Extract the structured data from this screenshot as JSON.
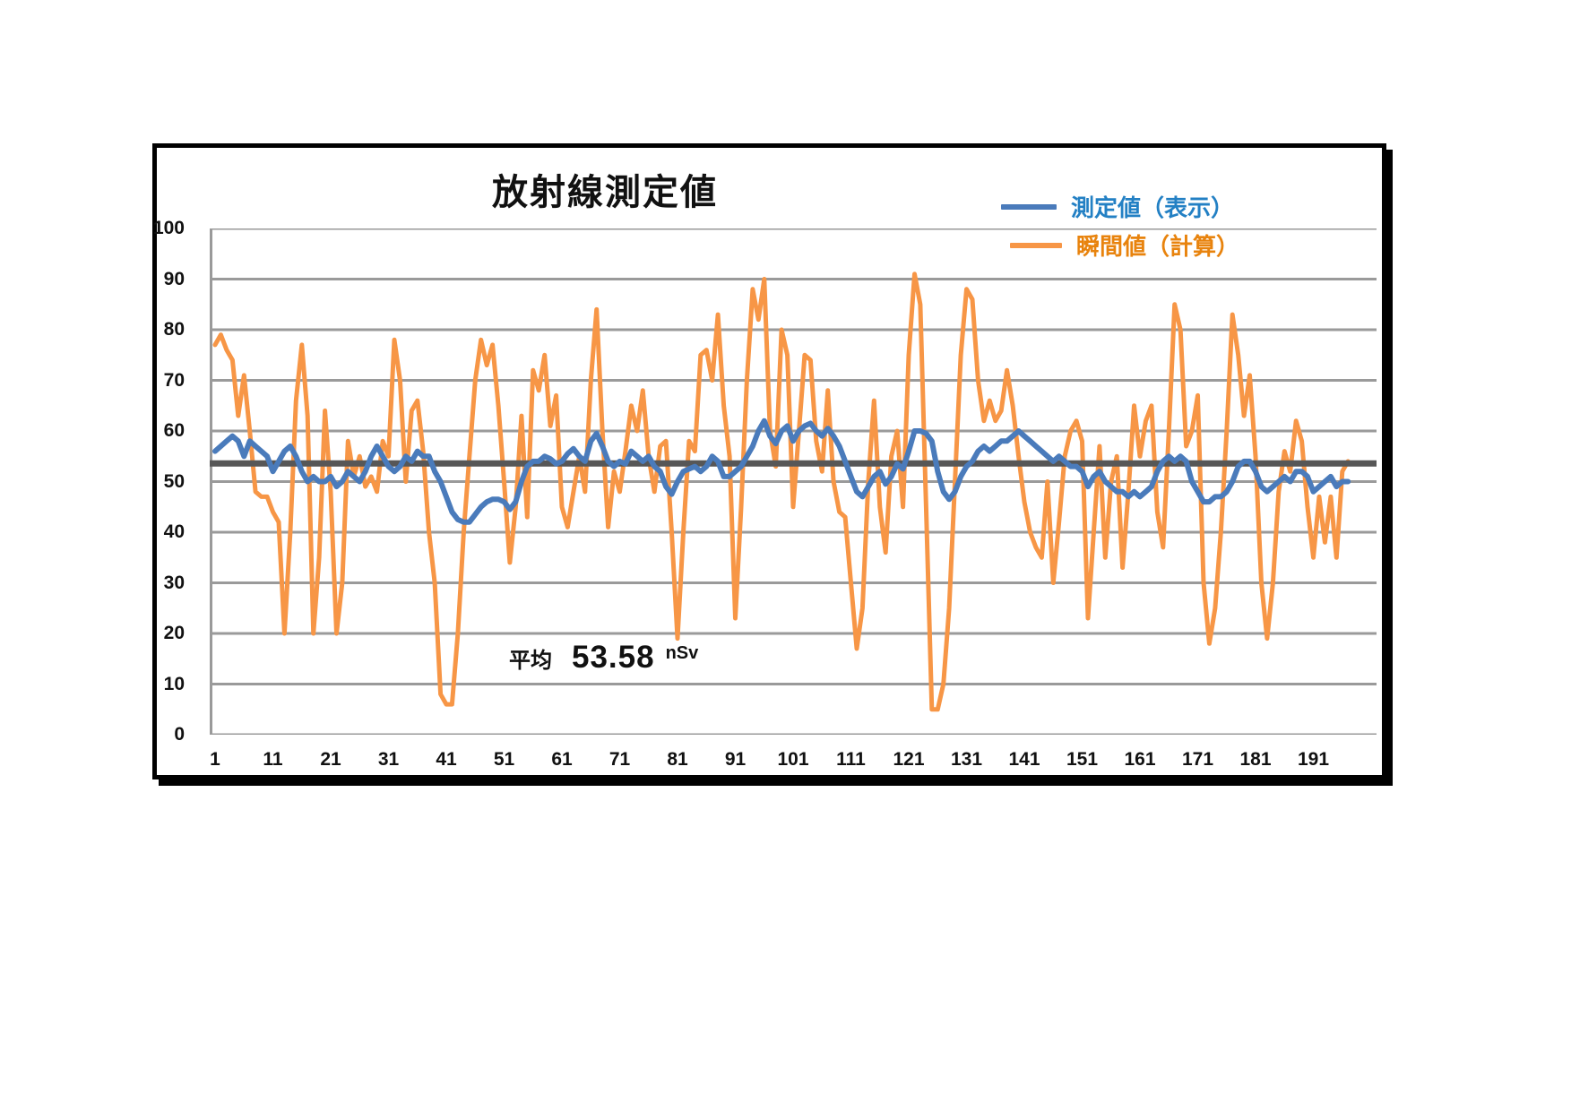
{
  "chart": {
    "title": "放射線測定値",
    "legend": [
      {
        "label": "測定値（表示）",
        "line_color": "#4A7BBB",
        "text_color": "#2380C4"
      },
      {
        "label": "瞬間値（計算）",
        "line_color": "#F79646",
        "text_color": "#E8830D"
      }
    ],
    "annotation": {
      "label": "平均",
      "value": "53.58",
      "unit": "nSv"
    }
  },
  "chart_data": {
    "type": "line",
    "title": "放射線測定値",
    "xlabel": "",
    "ylabel": "",
    "ylim": [
      0,
      100
    ],
    "y_step": 10,
    "grid": true,
    "legend_position": "top-right",
    "average_line": {
      "value": 53.58,
      "color": "#575757"
    },
    "grid_color": "#9a9a9a",
    "x_tick_points": [
      1,
      11,
      21,
      31,
      41,
      51,
      61,
      71,
      81,
      91,
      101,
      111,
      121,
      131,
      141,
      151,
      161,
      171,
      181,
      191
    ],
    "x_ticks": [
      "1",
      "11",
      "21",
      "31",
      "41",
      "51",
      "61",
      "71",
      "81",
      "91",
      "101",
      "111",
      "121",
      "131",
      "141",
      "151",
      "161",
      "171",
      "181",
      "191"
    ],
    "series": [
      {
        "name": "測定値（表示）",
        "color": "#4A7BBB",
        "values": [
          56,
          57,
          58,
          59,
          58,
          55,
          58,
          57,
          56,
          55,
          52,
          54,
          56,
          57,
          55,
          52,
          50,
          51,
          50,
          50,
          51,
          49,
          50,
          52,
          51,
          50,
          52,
          55,
          57,
          55,
          53,
          52,
          53,
          55,
          54,
          56,
          55,
          55,
          52,
          50,
          47,
          44,
          42.5,
          42,
          42,
          43.5,
          45,
          46,
          46.5,
          46.5,
          46,
          44.5,
          46,
          50,
          53,
          54,
          54,
          55,
          54.5,
          53.5,
          54,
          55.5,
          56.5,
          55,
          54,
          58,
          59.5,
          57,
          54,
          53,
          54,
          53.5,
          56,
          55,
          54,
          55,
          53,
          52,
          49,
          47.5,
          50,
          52,
          52.5,
          53,
          52,
          53,
          55,
          54,
          51,
          51,
          52,
          53,
          55,
          57,
          60,
          62,
          59,
          57.5,
          60,
          61,
          58,
          60,
          61,
          61.5,
          60,
          59,
          60.5,
          59,
          57,
          54,
          51,
          48,
          47,
          49,
          51,
          52,
          49.5,
          51,
          53.5,
          52.5,
          56,
          60,
          60,
          59.5,
          58,
          52,
          48,
          46.5,
          48,
          51,
          53,
          54,
          56,
          57,
          56,
          57,
          58,
          58,
          59,
          60,
          59,
          58,
          57,
          56,
          55,
          54,
          55,
          54,
          53,
          53,
          52,
          49,
          51,
          52,
          50,
          49,
          48,
          48,
          47,
          48,
          47,
          48,
          49,
          52,
          54,
          55,
          54,
          55,
          54,
          50,
          48,
          46,
          46,
          47,
          47,
          48,
          50,
          53,
          54,
          54,
          52,
          49,
          48,
          49,
          50,
          51,
          50,
          52,
          52,
          51,
          48,
          49,
          50,
          51,
          49,
          50,
          50
        ]
      },
      {
        "name": "瞬間値（計算）",
        "color": "#F79646",
        "values": [
          77,
          79,
          76,
          74,
          63,
          71,
          60,
          48,
          47,
          47,
          44,
          42,
          20,
          40,
          66,
          77,
          63,
          20,
          35,
          64,
          48,
          20,
          30,
          58,
          51,
          55,
          49,
          51,
          48,
          58,
          55,
          78,
          70,
          50,
          64,
          66,
          56,
          40,
          30,
          8,
          6,
          6,
          20,
          40,
          55,
          70,
          78,
          73,
          77,
          65,
          50,
          34,
          45,
          63,
          43,
          72,
          68,
          75,
          61,
          67,
          45,
          41,
          48,
          55,
          48,
          70,
          84,
          60,
          41,
          52,
          48,
          56,
          65,
          60,
          68,
          55,
          48,
          57,
          58,
          40,
          19,
          40,
          58,
          56,
          75,
          76,
          70,
          83,
          65,
          55,
          23,
          45,
          70,
          88,
          82,
          90,
          60,
          53,
          80,
          75,
          45,
          60,
          75,
          74,
          58,
          52,
          68,
          50,
          44,
          43,
          30,
          17,
          25,
          50,
          66,
          45,
          36,
          55,
          60,
          45,
          75,
          91,
          85,
          45,
          5,
          5,
          10,
          25,
          50,
          75,
          88,
          86,
          70,
          62,
          66,
          62,
          64,
          72,
          65,
          55,
          46,
          40,
          37,
          35,
          50,
          30,
          42,
          55,
          60,
          62,
          58,
          23,
          40,
          57,
          35,
          50,
          55,
          33,
          48,
          65,
          55,
          62,
          65,
          44,
          37,
          60,
          85,
          80,
          57,
          60,
          67,
          30,
          18,
          25,
          40,
          60,
          83,
          75,
          63,
          71,
          55,
          30,
          19,
          30,
          48,
          56,
          52,
          62,
          58,
          45,
          35,
          47,
          38,
          47,
          35,
          52,
          54
        ]
      }
    ]
  }
}
